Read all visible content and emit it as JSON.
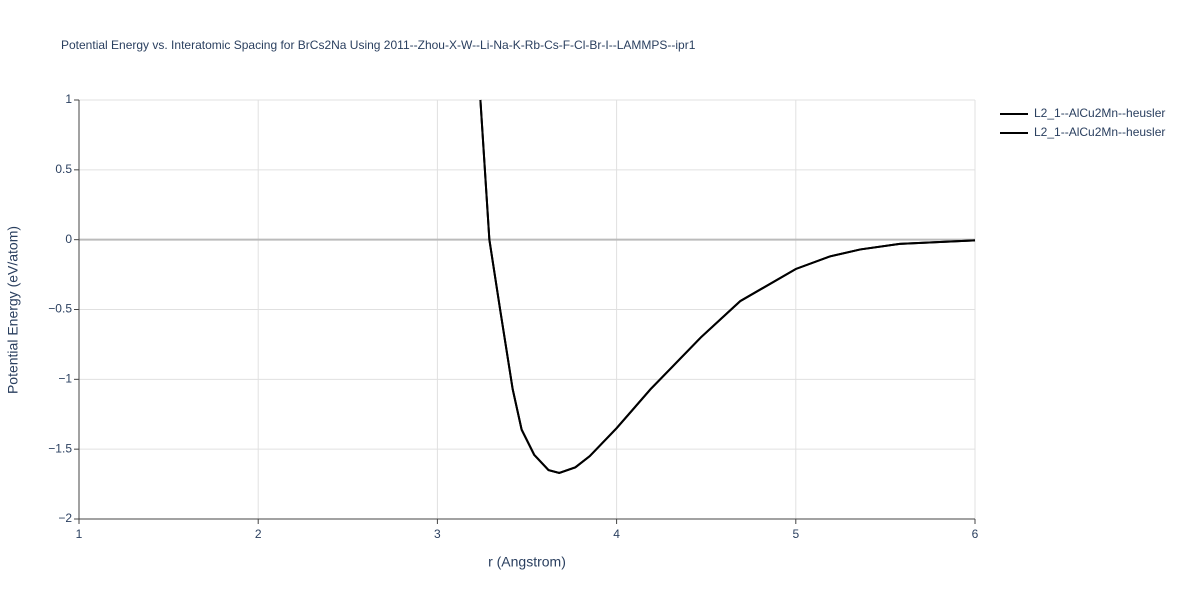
{
  "chart_data": {
    "type": "line",
    "title": "Potential Energy vs. Interatomic Spacing for BrCs2Na Using 2011--Zhou-X-W--Li-Na-K-Rb-Cs-F-Cl-Br-I--LAMMPS--ipr1",
    "x_label": "r (Angstrom)",
    "y_label": "Potential Energy (eV/atom)",
    "xlim": [
      1,
      6
    ],
    "ylim": [
      -2,
      1
    ],
    "xticks": [
      1,
      2,
      3,
      4,
      5,
      6
    ],
    "yticks": [
      {
        "value": -2,
        "label": "−2"
      },
      {
        "value": -1.5,
        "label": "−1.5"
      },
      {
        "value": -1,
        "label": "−1"
      },
      {
        "value": -0.5,
        "label": "−0.5"
      },
      0,
      0.5,
      1
    ],
    "grid": true,
    "legend": "top-right",
    "series": [
      {
        "name": "L2_1--AlCu2Mn--heusler",
        "color": "#000000",
        "x": [
          3.24,
          3.29,
          3.35,
          3.42,
          3.47,
          3.54,
          3.62,
          3.68,
          3.77,
          3.85,
          4.0,
          4.19,
          4.47,
          4.69,
          5.0,
          5.19,
          5.36,
          5.58,
          6.0
        ],
        "values": [
          1.0,
          0.0,
          -0.5,
          -1.07,
          -1.36,
          -1.54,
          -1.65,
          -1.67,
          -1.63,
          -1.55,
          -1.35,
          -1.07,
          -0.7,
          -0.44,
          -0.21,
          -0.12,
          -0.07,
          -0.03,
          -0.005
        ]
      },
      {
        "name": "L2_1--AlCu2Mn--heusler",
        "color": "#000000",
        "x": [
          3.24,
          3.29,
          3.35,
          3.42,
          3.47,
          3.54,
          3.62,
          3.68,
          3.77,
          3.85,
          4.0,
          4.19,
          4.47,
          4.69,
          5.0,
          5.19,
          5.36,
          5.58,
          6.0
        ],
        "values": [
          1.0,
          0.0,
          -0.5,
          -1.07,
          -1.36,
          -1.54,
          -1.65,
          -1.67,
          -1.63,
          -1.55,
          -1.35,
          -1.07,
          -0.7,
          -0.44,
          -0.21,
          -0.12,
          -0.07,
          -0.03,
          -0.005
        ]
      }
    ]
  }
}
